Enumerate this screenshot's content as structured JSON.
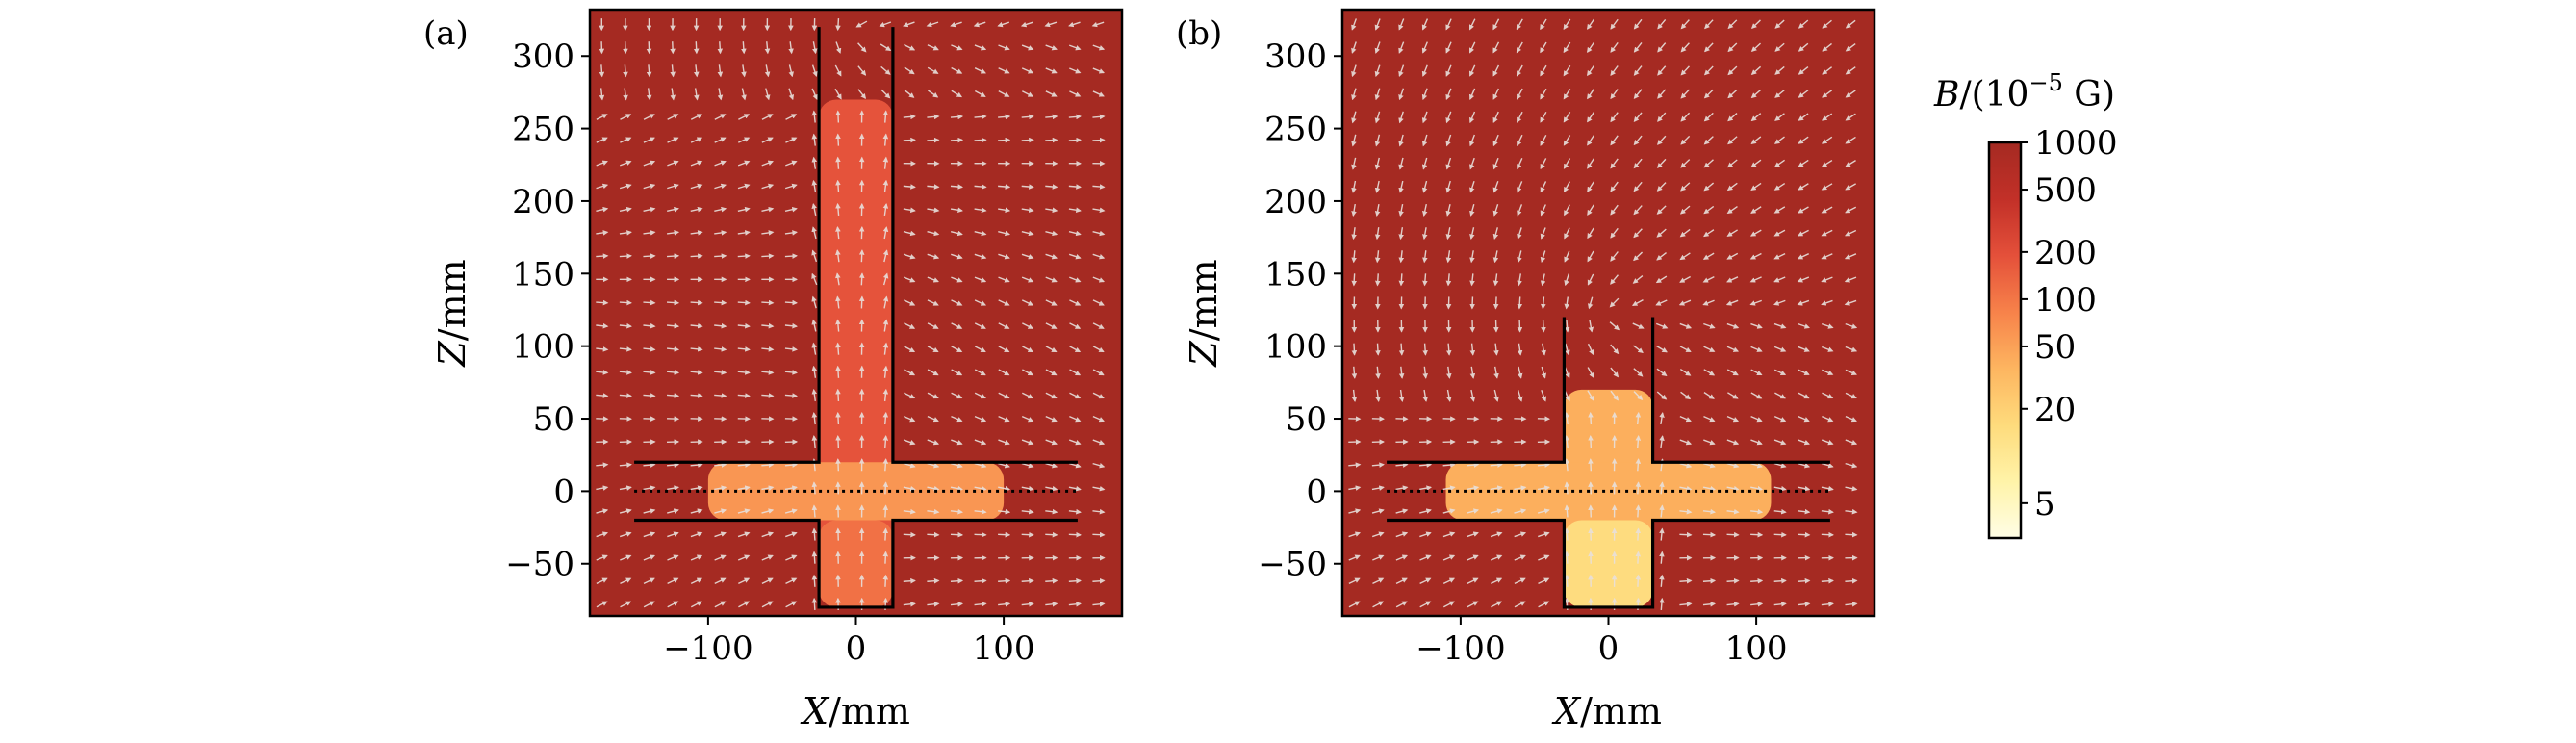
{
  "colors": {
    "field_high": "#a52a22",
    "arrow": "#e8e0dc",
    "frame": "#000000",
    "colormap": [
      "#fffee6",
      "#fff3a8",
      "#fedb7c",
      "#fdb560",
      "#f7824a",
      "#e4503a",
      "#c23028",
      "#a52a22"
    ]
  },
  "chart_data": [
    {
      "type": "heatmap",
      "panel_label": "(a)",
      "xlabel_var": "X",
      "xlabel_unit": "/mm",
      "ylabel_var": "Z",
      "ylabel_unit": "/mm",
      "xlim": [
        -180,
        180
      ],
      "ylim": [
        -86,
        332
      ],
      "xticks": [
        -100,
        0,
        100
      ],
      "xtick_labels": [
        "−100",
        "0",
        "100"
      ],
      "yticks": [
        -50,
        0,
        50,
        100,
        150,
        200,
        250,
        300
      ],
      "ytick_labels": [
        "−50",
        "0",
        "50",
        "100",
        "150",
        "200",
        "250",
        "300"
      ],
      "shield": {
        "horizontal_tube": {
          "x_range": [
            -150,
            150
          ],
          "z_range": [
            -20,
            20
          ]
        },
        "vertical_tube": {
          "x_range": [
            -25,
            25
          ],
          "z_range": [
            -80,
            320
          ]
        }
      },
      "axis_line": {
        "x_range": [
          -150,
          150
        ],
        "z": 0,
        "style": "dotted"
      },
      "field_regions": [
        {
          "name": "vertical-tube-interior",
          "x_range": [
            -25,
            25
          ],
          "z_range": [
            -80,
            270
          ],
          "B": 180
        },
        {
          "name": "horizontal-tube-interior",
          "x_range": [
            -100,
            100
          ],
          "z_range": [
            -20,
            20
          ],
          "B": 60
        },
        {
          "name": "lower-stub-interior",
          "x_range": [
            -25,
            25
          ],
          "z_range": [
            -80,
            -20
          ],
          "B": 110
        },
        {
          "name": "outside",
          "B": 1000
        }
      ]
    },
    {
      "type": "heatmap",
      "panel_label": "(b)",
      "xlabel_var": "X",
      "xlabel_unit": "/mm",
      "ylabel_var": "Z",
      "ylabel_unit": "/mm",
      "xlim": [
        -180,
        180
      ],
      "ylim": [
        -86,
        332
      ],
      "xticks": [
        -100,
        0,
        100
      ],
      "xtick_labels": [
        "−100",
        "0",
        "100"
      ],
      "yticks": [
        -50,
        0,
        50,
        100,
        150,
        200,
        250,
        300
      ],
      "ytick_labels": [
        "−50",
        "0",
        "50",
        "100",
        "150",
        "200",
        "250",
        "300"
      ],
      "shield": {
        "horizontal_tube": {
          "x_range": [
            -150,
            150
          ],
          "z_range": [
            -20,
            20
          ]
        },
        "vertical_tube": {
          "x_range": [
            -30,
            30
          ],
          "z_range": [
            -80,
            120
          ]
        }
      },
      "axis_line": {
        "x_range": [
          -150,
          150
        ],
        "z": 0,
        "style": "dotted"
      },
      "field_regions": [
        {
          "name": "vertical-tube-interior",
          "x_range": [
            -30,
            30
          ],
          "z_range": [
            -80,
            70
          ],
          "B": 40
        },
        {
          "name": "horizontal-tube-interior",
          "x_range": [
            -110,
            110
          ],
          "z_range": [
            -20,
            20
          ],
          "B": 40
        },
        {
          "name": "lower-stub-interior",
          "x_range": [
            -30,
            30
          ],
          "z_range": [
            -80,
            -20
          ],
          "B": 15
        },
        {
          "name": "outside",
          "B": 1000
        }
      ]
    }
  ],
  "colorbar": {
    "title_var": "B",
    "title_prefix": "/(10",
    "title_exp": "−5",
    "title_unit": " G)",
    "scale": "log",
    "range": [
      3,
      1000
    ],
    "ticks": [
      5,
      20,
      50,
      100,
      200,
      500,
      1000
    ],
    "tick_labels": [
      "5",
      "20",
      "50",
      "100",
      "200",
      "500",
      "1000"
    ]
  }
}
